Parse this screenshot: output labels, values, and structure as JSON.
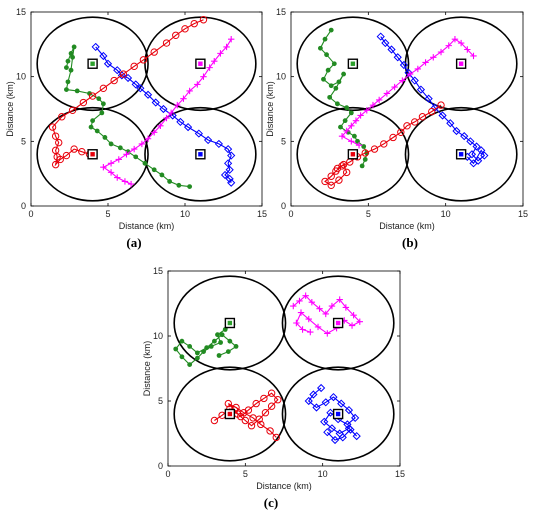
{
  "chart_data": [
    {
      "type": "line",
      "panel_label": "(a)",
      "xlabel": "Distance (km)",
      "ylabel": "Distance (km)",
      "xlim": [
        0,
        15
      ],
      "ylim": [
        0,
        15
      ],
      "xticks": [
        "0",
        "5",
        "10",
        "15"
      ],
      "yticks": [
        "0",
        "5",
        "10",
        "15"
      ],
      "grid": false,
      "cells": [
        {
          "center": [
            4,
            11
          ],
          "radius": 3.6
        },
        {
          "center": [
            11,
            11
          ],
          "radius": 3.6
        },
        {
          "center": [
            4,
            4
          ],
          "radius": 3.6
        },
        {
          "center": [
            11,
            4
          ],
          "radius": 3.6
        }
      ],
      "base_stations": [
        {
          "x": 4,
          "y": 11,
          "color": "#2ca02c"
        },
        {
          "x": 11,
          "y": 11,
          "color": "#ff00ff"
        },
        {
          "x": 4,
          "y": 4,
          "color": "#e8000b"
        },
        {
          "x": 11,
          "y": 4,
          "color": "#0000ff"
        }
      ],
      "series": [
        {
          "color": "#228b22",
          "marker": "dot",
          "x": [
            2.3,
            2.4,
            2.6,
            2.8,
            2.7,
            2.6,
            2.4,
            2.3,
            3.0,
            3.8,
            4.4,
            4.7,
            4.6,
            4.0,
            3.9,
            4.3,
            4.8,
            5.2,
            5.8,
            6.3,
            6.8,
            7.4,
            8.0,
            8.5,
            9.0,
            9.6,
            10.3
          ],
          "y": [
            10.7,
            11.2,
            11.8,
            12.3,
            11.5,
            10.5,
            9.6,
            9.0,
            8.9,
            8.7,
            8.3,
            7.9,
            7.2,
            6.6,
            6.1,
            5.8,
            5.3,
            4.8,
            4.5,
            4.2,
            3.8,
            3.3,
            2.8,
            2.4,
            1.9,
            1.6,
            1.5
          ]
        },
        {
          "color": "#0000ff",
          "marker": "diamond",
          "x": [
            4.2,
            4.7,
            5.0,
            5.6,
            5.9,
            6.3,
            6.8,
            7.1,
            7.6,
            8.1,
            8.6,
            9.2,
            9.7,
            10.2,
            10.9,
            11.5,
            12.2,
            12.8,
            13.0,
            12.8,
            12.9,
            12.6,
            12.9,
            13.0
          ],
          "y": [
            12.3,
            11.6,
            11.0,
            10.5,
            10.1,
            9.9,
            9.4,
            9.1,
            8.6,
            8.0,
            7.5,
            7.0,
            6.5,
            6.1,
            5.6,
            5.1,
            4.8,
            4.4,
            3.9,
            3.3,
            2.8,
            2.4,
            2.1,
            1.8
          ]
        },
        {
          "color": "#e8000b",
          "marker": "circle",
          "x": [
            11.2,
            10.6,
            10.0,
            9.4,
            8.8,
            8.0,
            7.3,
            6.7,
            6.0,
            5.4,
            4.7,
            4.0,
            3.4,
            2.7,
            2.0,
            1.4,
            1.6,
            1.8,
            1.6,
            1.7,
            1.6,
            1.9,
            2.3,
            2.8,
            3.3,
            3.8
          ],
          "y": [
            14.4,
            14.1,
            13.7,
            13.2,
            12.6,
            11.9,
            11.3,
            10.8,
            10.2,
            9.7,
            9.1,
            8.5,
            8.0,
            7.4,
            6.9,
            6.1,
            5.4,
            4.9,
            4.3,
            3.8,
            3.2,
            3.6,
            3.9,
            4.4,
            4.2,
            4.0
          ]
        },
        {
          "color": "#ff00ff",
          "marker": "plus",
          "x": [
            13.0,
            12.7,
            12.3,
            11.9,
            11.6,
            11.2,
            10.8,
            10.3,
            9.9,
            9.5,
            9.1,
            8.8,
            8.4,
            8.0,
            7.6,
            7.2,
            6.7,
            6.2,
            5.7,
            5.2,
            4.7,
            5.2,
            5.6,
            6.1,
            6.5
          ],
          "y": [
            12.9,
            12.3,
            11.8,
            11.2,
            10.7,
            10.0,
            9.4,
            8.9,
            8.3,
            7.8,
            7.2,
            6.8,
            6.2,
            5.7,
            5.2,
            4.8,
            4.4,
            4.0,
            3.6,
            3.3,
            3.0,
            2.6,
            2.2,
            1.9,
            1.7
          ]
        }
      ]
    },
    {
      "type": "line",
      "panel_label": "(b)",
      "xlabel": "Distance (km)",
      "ylabel": "Distance (km)",
      "xlim": [
        0,
        15
      ],
      "ylim": [
        0,
        15
      ],
      "xticks": [
        "0",
        "5",
        "10",
        "15"
      ],
      "yticks": [
        "0",
        "5",
        "10",
        "15"
      ],
      "grid": false,
      "cells": [
        {
          "center": [
            4,
            11
          ],
          "radius": 3.6
        },
        {
          "center": [
            11,
            11
          ],
          "radius": 3.6
        },
        {
          "center": [
            4,
            4
          ],
          "radius": 3.6
        },
        {
          "center": [
            11,
            4
          ],
          "radius": 3.6
        }
      ],
      "base_stations": [
        {
          "x": 4,
          "y": 11,
          "color": "#2ca02c"
        },
        {
          "x": 11,
          "y": 11,
          "color": "#ff00ff"
        },
        {
          "x": 4,
          "y": 4,
          "color": "#e8000b"
        },
        {
          "x": 11,
          "y": 4,
          "color": "#0000ff"
        }
      ],
      "series": [
        {
          "color": "#228b22",
          "marker": "dot",
          "x": [
            2.6,
            2.2,
            1.9,
            2.3,
            2.8,
            2.4,
            2.1,
            2.6,
            3.1,
            3.4,
            2.9,
            2.5,
            3.0,
            3.6,
            3.9,
            3.5,
            3.2,
            3.7,
            4.1,
            4.3,
            4.7,
            4.9,
            4.8,
            4.6
          ],
          "y": [
            13.6,
            12.9,
            12.2,
            11.7,
            11.0,
            10.5,
            9.8,
            9.3,
            9.6,
            10.2,
            9.1,
            8.4,
            7.9,
            7.6,
            7.2,
            6.6,
            6.1,
            5.7,
            5.4,
            5.0,
            4.6,
            4.1,
            3.6,
            3.1
          ]
        },
        {
          "color": "#0000ff",
          "marker": "diamond",
          "x": [
            5.8,
            6.1,
            6.5,
            6.9,
            7.3,
            7.6,
            8.0,
            8.4,
            8.9,
            9.3,
            9.8,
            10.3,
            10.7,
            11.2,
            11.6,
            12.0,
            11.7,
            12.1,
            12.5,
            12.3,
            11.8,
            11.4
          ],
          "y": [
            13.1,
            12.6,
            12.1,
            11.5,
            10.9,
            10.3,
            9.7,
            9.0,
            8.3,
            7.6,
            7.0,
            6.4,
            5.8,
            5.4,
            5.0,
            4.6,
            4.0,
            3.5,
            3.9,
            4.3,
            3.3,
            3.8
          ]
        },
        {
          "color": "#e8000b",
          "marker": "circle",
          "x": [
            9.7,
            9.1,
            8.5,
            8.0,
            7.5,
            7.1,
            6.6,
            6.0,
            5.4,
            4.8,
            4.3,
            3.8,
            3.3,
            2.9,
            2.6,
            2.2,
            2.6,
            3.1,
            3.6,
            3.4,
            3.0
          ],
          "y": [
            7.8,
            7.3,
            6.9,
            6.5,
            6.2,
            5.7,
            5.3,
            4.8,
            4.4,
            4.1,
            3.8,
            3.4,
            3.1,
            2.7,
            2.3,
            1.9,
            1.6,
            2.0,
            2.6,
            3.2,
            2.9
          ]
        },
        {
          "color": "#ff00ff",
          "marker": "plus",
          "x": [
            11.8,
            11.4,
            11.0,
            10.6,
            10.2,
            9.7,
            9.2,
            8.7,
            8.2,
            7.7,
            7.2,
            6.7,
            6.2,
            5.7,
            5.3,
            4.9,
            4.5,
            4.2,
            3.9,
            3.6,
            3.3,
            3.9,
            4.4
          ],
          "y": [
            11.6,
            12.1,
            12.6,
            12.9,
            12.4,
            11.9,
            11.5,
            11.1,
            10.6,
            10.2,
            9.7,
            9.2,
            8.7,
            8.2,
            7.8,
            7.4,
            7.0,
            6.6,
            6.2,
            5.8,
            5.4,
            5.0,
            4.7
          ]
        }
      ]
    },
    {
      "type": "line",
      "panel_label": "(c)",
      "xlabel": "Distance (km)",
      "ylabel": "Distance (km)",
      "xlim": [
        0,
        15
      ],
      "ylim": [
        0,
        15
      ],
      "xticks": [
        "0",
        "5",
        "10",
        "15"
      ],
      "yticks": [
        "0",
        "5",
        "10",
        "15"
      ],
      "grid": false,
      "cells": [
        {
          "center": [
            4,
            11
          ],
          "radius": 3.6
        },
        {
          "center": [
            11,
            11
          ],
          "radius": 3.6
        },
        {
          "center": [
            4,
            4
          ],
          "radius": 3.6
        },
        {
          "center": [
            11,
            4
          ],
          "radius": 3.6
        }
      ],
      "base_stations": [
        {
          "x": 4,
          "y": 11,
          "color": "#2ca02c"
        },
        {
          "x": 11,
          "y": 11,
          "color": "#ff00ff"
        },
        {
          "x": 4,
          "y": 4,
          "color": "#e8000b"
        },
        {
          "x": 11,
          "y": 4,
          "color": "#0000ff"
        }
      ],
      "series": [
        {
          "color": "#228b22",
          "marker": "dot",
          "x": [
            4.2,
            3.7,
            3.2,
            3.4,
            2.8,
            2.3,
            1.9,
            1.4,
            0.9,
            0.5,
            0.9,
            1.4,
            1.9,
            2.5,
            3.0,
            3.5,
            4.0,
            4.4,
            3.9,
            3.3
          ],
          "y": [
            10.9,
            10.5,
            10.1,
            9.5,
            9.2,
            8.8,
            8.3,
            7.8,
            8.4,
            9.0,
            9.6,
            9.2,
            8.7,
            9.1,
            9.6,
            10.1,
            9.6,
            9.2,
            8.8,
            8.5
          ]
        },
        {
          "color": "#0000ff",
          "marker": "diamond",
          "x": [
            9.9,
            9.4,
            9.1,
            9.6,
            10.2,
            10.7,
            11.2,
            11.7,
            12.1,
            11.6,
            11.0,
            10.5,
            10.1,
            10.6,
            11.1,
            11.7,
            12.2,
            11.8,
            11.3,
            10.8,
            10.3
          ],
          "y": [
            6.0,
            5.5,
            5.0,
            4.5,
            4.9,
            5.3,
            4.8,
            4.3,
            3.7,
            3.2,
            3.6,
            4.1,
            3.4,
            2.9,
            2.5,
            2.9,
            2.3,
            2.8,
            2.2,
            2.0,
            2.6
          ]
        },
        {
          "color": "#e8000b",
          "marker": "circle",
          "x": [
            3.0,
            3.5,
            4.0,
            4.5,
            5.0,
            5.4,
            5.9,
            6.3,
            6.7,
            7.1,
            6.7,
            6.2,
            5.7,
            5.2,
            4.7,
            4.3,
            3.9,
            4.4,
            4.9,
            5.5,
            6.0,
            6.6,
            7.0
          ],
          "y": [
            3.5,
            3.9,
            4.4,
            4.0,
            3.5,
            3.1,
            3.6,
            4.1,
            4.6,
            5.1,
            5.6,
            5.2,
            4.8,
            4.3,
            3.8,
            4.3,
            4.8,
            4.5,
            4.1,
            3.7,
            3.2,
            2.7,
            2.2
          ]
        },
        {
          "color": "#ff00ff",
          "marker": "plus",
          "x": [
            8.1,
            8.5,
            8.9,
            9.3,
            9.8,
            10.2,
            10.6,
            11.1,
            11.5,
            12.0,
            12.4,
            11.9,
            11.4,
            10.9,
            10.3,
            9.7,
            9.1,
            8.6,
            8.3,
            8.7,
            9.2
          ],
          "y": [
            12.3,
            12.7,
            13.1,
            12.6,
            12.1,
            11.7,
            12.3,
            12.8,
            12.2,
            11.6,
            11.1,
            10.8,
            11.2,
            10.6,
            10.2,
            10.7,
            11.3,
            11.8,
            11.0,
            10.5,
            10.3
          ]
        }
      ]
    }
  ]
}
